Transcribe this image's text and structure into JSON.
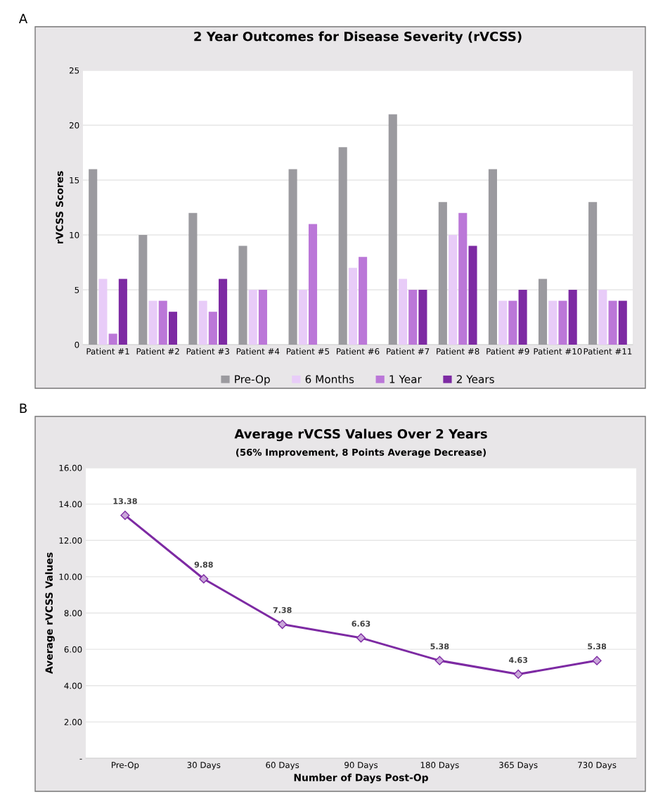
{
  "chart_data": [
    {
      "type": "bar",
      "title": "2 Year Outcomes for Disease Severity (rVCSS)",
      "ylabel": "rVCSS Scores",
      "categories": [
        "Patient #1",
        "Patient #2",
        "Patient #3",
        "Patient #4",
        "Patient #5",
        "Patient #6",
        "Patient #7",
        "Patient #8",
        "Patient #9",
        "Patient #10",
        "Patient #11"
      ],
      "series": [
        {
          "name": "Pre-Op",
          "color": "#9b9a9f",
          "values": [
            16,
            10,
            12,
            9,
            16,
            18,
            21,
            13,
            16,
            6,
            13
          ]
        },
        {
          "name": "6 Months",
          "color": "#e8ccf8",
          "values": [
            6,
            4,
            4,
            5,
            5,
            7,
            6,
            10,
            4,
            4,
            5
          ]
        },
        {
          "name": "1 Year",
          "color": "#bb77d8",
          "values": [
            1,
            4,
            3,
            5,
            11,
            8,
            5,
            12,
            4,
            4,
            4
          ]
        },
        {
          "name": "2 Years",
          "color": "#7d2aa3",
          "values": [
            6,
            3,
            6,
            null,
            null,
            null,
            5,
            9,
            5,
            5,
            4
          ]
        }
      ],
      "ylim": [
        0,
        25
      ],
      "yticks": [
        0,
        5,
        10,
        15,
        20,
        25
      ],
      "grid": "y",
      "legend": "bottom",
      "annotations": [
        "A"
      ]
    },
    {
      "type": "line",
      "title": "Average rVCSS Values Over 2 Years",
      "subtitle": "(56% Improvement, 8 Points Average Decrease)",
      "xlabel": "Number of Days Post-Op",
      "ylabel": "Average rVCSS Values",
      "categories": [
        "Pre-Op",
        "30 Days",
        "60 Days",
        "90 Days",
        "180 Days",
        "365 Days",
        "730 Days"
      ],
      "values": [
        13.38,
        9.88,
        7.38,
        6.63,
        5.38,
        4.63,
        5.38
      ],
      "color": "#7d2aa3",
      "marker": "diamond",
      "data_labels": true,
      "ylim": [
        0,
        16
      ],
      "yticks": [
        {
          "value": 0,
          "label": "-"
        },
        {
          "value": 2,
          "label": "2.00"
        },
        {
          "value": 4,
          "label": "4.00"
        },
        {
          "value": 6,
          "label": "6.00"
        },
        {
          "value": 8,
          "label": "8.00"
        },
        {
          "value": 10,
          "label": "10.00"
        },
        {
          "value": 12,
          "label": "12.00"
        },
        {
          "value": 14,
          "label": "14.00"
        },
        {
          "value": 16,
          "label": "16.00"
        }
      ],
      "grid": "y",
      "annotations": [
        "B"
      ]
    }
  ]
}
